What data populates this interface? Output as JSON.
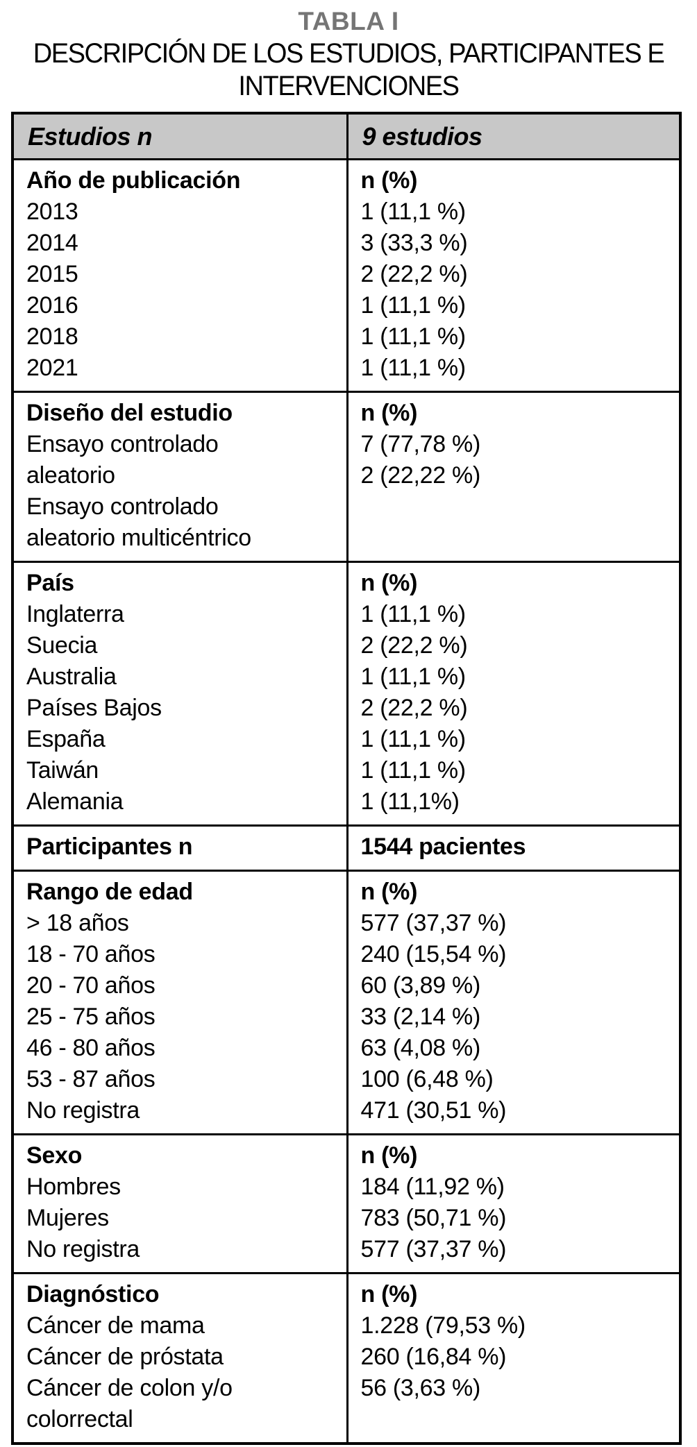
{
  "caption": {
    "title": "TABLA I",
    "subtitle_line1": "DESCRIPCIÓN DE LOS ESTUDIOS, PARTICIPANTES E",
    "subtitle_line2": "INTERVENCIONES"
  },
  "colors": {
    "header_bg": "#c8c8c8",
    "title_gray": "#757575",
    "border": "#000000"
  },
  "table": {
    "header": {
      "left": "Estudios n",
      "right": "9 estudios"
    },
    "sections": [
      {
        "name": "ano-de-publicacion",
        "left_header": "Año de publicación",
        "right_header": "n (%)",
        "left_lines": [
          "2013",
          "2014",
          "2015",
          "2016",
          "2018",
          "2021"
        ],
        "right_lines": [
          "1 (11,1 %)",
          "3 (33,3 %)",
          "2 (22,2 %)",
          "1 (11,1 %)",
          "1 (11,1 %)",
          "1 (11,1 %)"
        ]
      },
      {
        "name": "diseno-del-estudio",
        "left_header": "Diseño del estudio",
        "right_header": "n (%)",
        "left_lines": [
          "Ensayo controlado",
          "aleatorio",
          "Ensayo controlado",
          "aleatorio multicéntrico"
        ],
        "right_lines": [
          "7 (77,78 %)",
          "2 (22,22 %)"
        ]
      },
      {
        "name": "pais",
        "left_header": "País",
        "right_header": "n (%)",
        "left_lines": [
          "Inglaterra",
          "Suecia",
          "Australia",
          "Países Bajos",
          "España",
          "Taiwán",
          "Alemania"
        ],
        "right_lines": [
          "1 (11,1 %)",
          "2 (22,2 %)",
          "1 (11,1 %)",
          "2 (22,2 %)",
          "1 (11,1 %)",
          "1 (11,1 %)",
          "1 (11,1%)"
        ]
      },
      {
        "name": "participantes",
        "left_header": "Participantes n",
        "right_header": "1544 pacientes",
        "left_lines": [],
        "right_lines": []
      },
      {
        "name": "rango-de-edad",
        "left_header": "Rango de edad",
        "right_header": "n (%)",
        "left_lines": [
          "> 18 años",
          "18 - 70 años",
          "20 - 70 años",
          "25 - 75 años",
          "46 - 80 años",
          "53 - 87 años",
          "No registra"
        ],
        "right_lines": [
          "577 (37,37 %)",
          "240 (15,54 %)",
          "60 (3,89 %)",
          "33 (2,14 %)",
          "63 (4,08 %)",
          "100 (6,48 %)",
          "471 (30,51 %)"
        ]
      },
      {
        "name": "sexo",
        "left_header": "Sexo",
        "right_header": "n (%)",
        "left_lines": [
          "Hombres",
          "Mujeres",
          "No registra"
        ],
        "right_lines": [
          "184 (11,92 %)",
          "783 (50,71 %)",
          "577 (37,37 %)"
        ]
      },
      {
        "name": "diagnostico",
        "left_header": "Diagnóstico",
        "right_header": "n (%)",
        "left_lines": [
          "Cáncer de mama",
          "Cáncer de próstata",
          "Cáncer de colon y/o",
          "colorrectal"
        ],
        "right_lines": [
          "1.228 (79,53 %)",
          "260 (16,84 %)",
          "56 (3,63 %)"
        ]
      }
    ]
  }
}
